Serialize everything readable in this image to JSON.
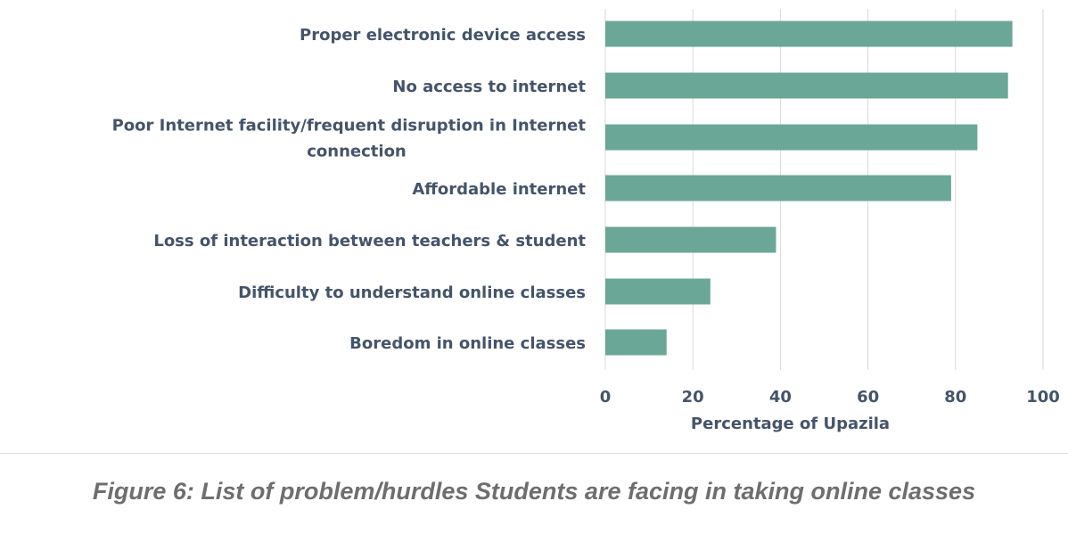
{
  "chart_data": {
    "type": "bar",
    "orientation": "horizontal",
    "categories": [
      "Proper electronic device access",
      "No access to internet",
      "Poor Internet facility/frequent disruption in Internet connection",
      "Affordable internet",
      "Loss of interaction between teachers & student",
      "Difficulty to understand online classes",
      "Boredom in online classes"
    ],
    "category_label_lines": [
      [
        "Proper electronic device access"
      ],
      [
        "No access to internet"
      ],
      [
        "Poor Internet facility/frequent disruption in Internet",
        "connection"
      ],
      [
        "Affordable internet"
      ],
      [
        "Loss of interaction between teachers & student"
      ],
      [
        "Difficulty to understand online classes"
      ],
      [
        "Boredom in online classes"
      ]
    ],
    "values": [
      93,
      92,
      85,
      79,
      39,
      24,
      14
    ],
    "xlabel": "Percentage of Upazila",
    "xlim": [
      0,
      100
    ],
    "xticks": [
      0,
      20,
      40,
      60,
      80,
      100
    ],
    "grid": "vertical",
    "bar_color": "#6aa797",
    "grid_color": "#d9d9d9"
  },
  "caption": "Figure 6: List of problem/hurdles Students are facing in taking online classes"
}
